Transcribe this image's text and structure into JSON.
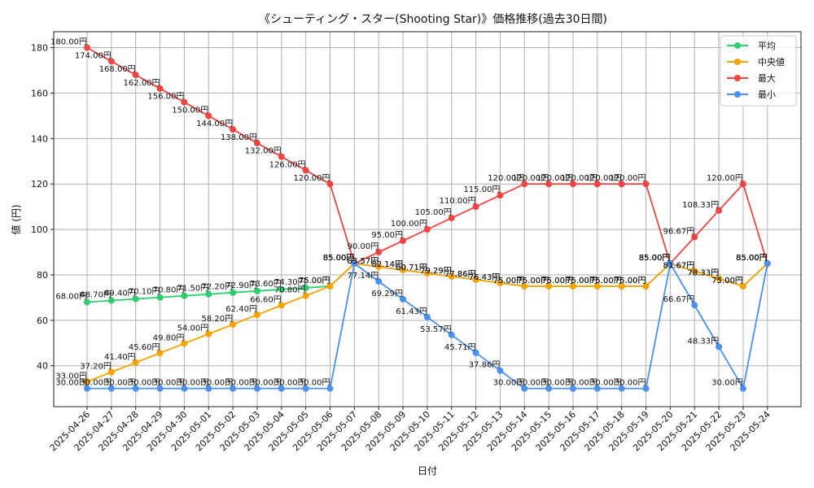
{
  "chart_data": {
    "type": "line",
    "title": "《シューティング・スター(Shooting Star)》価格推移(過去30日間)",
    "xlabel": "日付",
    "ylabel": "値 (円)",
    "ylim": [
      22,
      187
    ],
    "yticks": [
      40,
      60,
      80,
      100,
      120,
      140,
      160,
      180
    ],
    "grid": true,
    "legend_position": "top-right",
    "value_suffix": "円",
    "categories": [
      "2025-04-26",
      "2025-04-27",
      "2025-04-28",
      "2025-04-29",
      "2025-04-30",
      "2025-05-01",
      "2025-05-02",
      "2025-05-03",
      "2025-05-04",
      "2025-05-05",
      "2025-05-06",
      "2025-05-07",
      "2025-05-08",
      "2025-05-09",
      "2025-05-10",
      "2025-05-11",
      "2025-05-12",
      "2025-05-13",
      "2025-05-14",
      "2025-05-15",
      "2025-05-16",
      "2025-05-17",
      "2025-05-18",
      "2025-05-19",
      "2025-05-20",
      "2025-05-21",
      "2025-05-22",
      "2025-05-23",
      "2025-05-24"
    ],
    "series": [
      {
        "name": "平均",
        "color": "#2ecc71",
        "values": [
          68.0,
          68.7,
          69.4,
          70.1,
          70.8,
          71.5,
          72.2,
          72.9,
          73.6,
          74.3,
          75.0,
          85.0,
          83.57,
          82.14,
          80.71,
          79.29,
          77.86,
          76.43,
          75.0,
          75.0,
          75.0,
          75.0,
          75.0,
          75.0,
          85.0,
          81.67,
          78.33,
          75.0,
          85.0
        ]
      },
      {
        "name": "中央値",
        "color": "#f5a300",
        "values": [
          33.0,
          37.2,
          41.4,
          45.6,
          49.8,
          54.0,
          58.2,
          62.4,
          66.6,
          70.8,
          75.0,
          85.0,
          83.57,
          82.14,
          80.71,
          79.29,
          77.86,
          76.43,
          75.0,
          75.0,
          75.0,
          75.0,
          75.0,
          75.0,
          85.0,
          81.67,
          78.33,
          75.0,
          85.0
        ]
      },
      {
        "name": "最大",
        "color": "#ef4444",
        "values": [
          180.0,
          174.0,
          168.0,
          162.0,
          156.0,
          150.0,
          144.0,
          138.0,
          132.0,
          126.0,
          120.0,
          85.0,
          90.0,
          95.0,
          100.0,
          105.0,
          110.0,
          115.0,
          120.0,
          120.0,
          120.0,
          120.0,
          120.0,
          120.0,
          85.0,
          96.67,
          108.33,
          120.0,
          85.0
        ]
      },
      {
        "name": "最小",
        "color": "#4a90f0",
        "values": [
          30.0,
          30.0,
          30.0,
          30.0,
          30.0,
          30.0,
          30.0,
          30.0,
          30.0,
          30.0,
          30.0,
          85.0,
          77.14,
          69.29,
          61.43,
          53.57,
          45.71,
          37.86,
          30.0,
          30.0,
          30.0,
          30.0,
          30.0,
          30.0,
          85.0,
          66.67,
          48.33,
          30.0,
          85.0
        ]
      }
    ]
  }
}
